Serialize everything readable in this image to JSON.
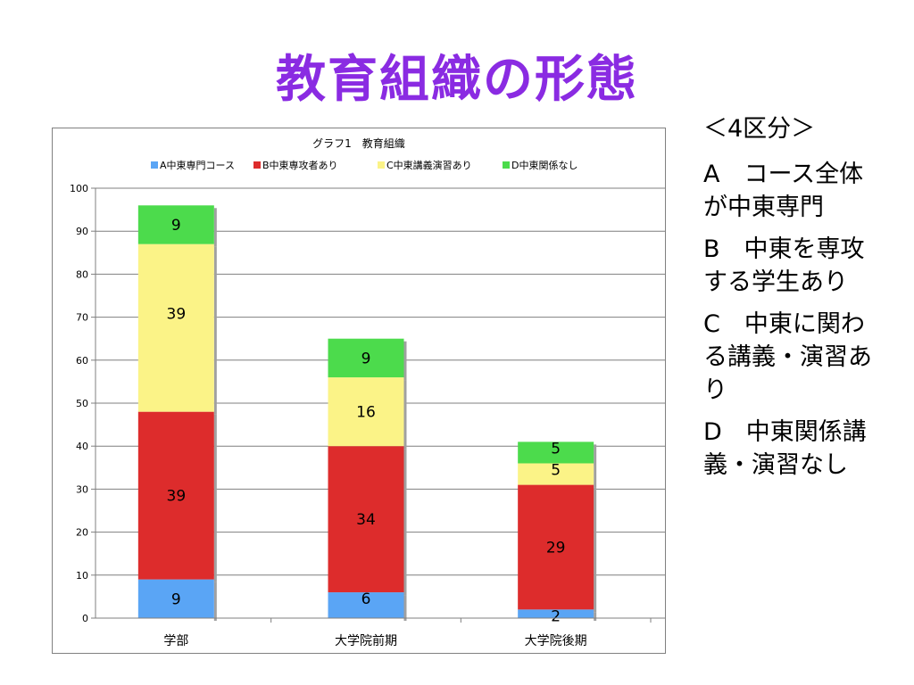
{
  "slide": {
    "title": "教育組織の形態"
  },
  "side_legend": {
    "heading": "＜4区分＞",
    "items": [
      "A　コース全体が中東専門",
      "B　中東を専攻する学生あり",
      "C　中東に関わる講義・演習あり",
      "D　中東関係講義・演習なし"
    ]
  },
  "chart_data": {
    "type": "bar",
    "stacked": true,
    "title": "グラフ1　教育組織",
    "categories": [
      "学部",
      "大学院前期",
      "大学院後期"
    ],
    "series": [
      {
        "name": "A中東専門コース",
        "values": [
          9,
          6,
          2
        ],
        "color": "#5aa5f5"
      },
      {
        "name": "B中東専攻者あり",
        "values": [
          39,
          34,
          29
        ],
        "color": "#dd2c2c"
      },
      {
        "name": "C中東講義演習あり",
        "values": [
          39,
          16,
          5
        ],
        "color": "#fbf387"
      },
      {
        "name": "D中東関係なし",
        "values": [
          9,
          9,
          5
        ],
        "color": "#4cdb4c"
      }
    ],
    "ylim": [
      0,
      100
    ],
    "yticks": [
      0,
      10,
      20,
      30,
      40,
      50,
      60,
      70,
      80,
      90,
      100
    ],
    "grid": true,
    "legend_position": "top"
  }
}
